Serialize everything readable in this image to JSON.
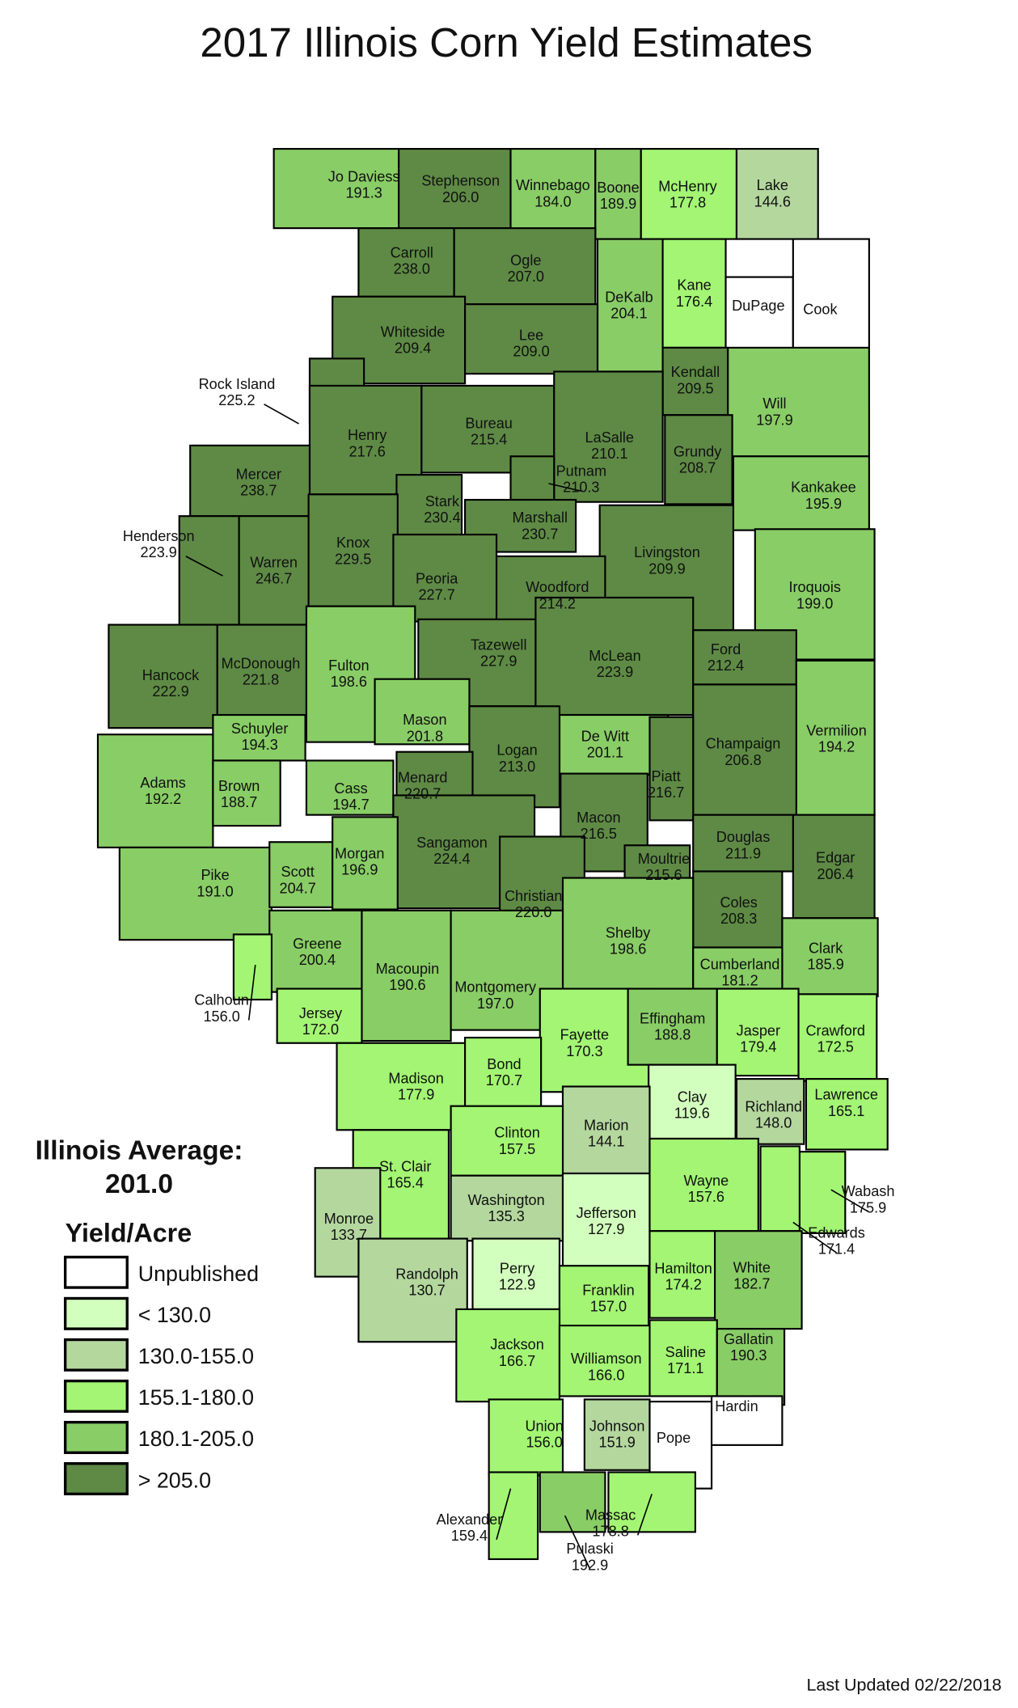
{
  "title": "2017 Illinois Corn Yield Estimates",
  "average": {
    "label": "Illinois Average:",
    "value": "201.0"
  },
  "legend": {
    "title": "Yield/Acre",
    "classes": [
      {
        "label": "Unpublished",
        "color": "#ffffff"
      },
      {
        "label": "< 130.0",
        "color": "#d3ffbe"
      },
      {
        "label": "130.0-155.0",
        "color": "#b4d79e"
      },
      {
        "label": "155.1-180.0",
        "color": "#a3f573"
      },
      {
        "label": "180.1-205.0",
        "color": "#89cd66"
      },
      {
        "label": "> 205.0",
        "color": "#5e8a45"
      }
    ]
  },
  "footer": "Last Updated 02/22/2018",
  "counties": [
    {
      "name": "Jo Daviess",
      "yield": "191.3"
    },
    {
      "name": "Stephenson",
      "yield": "206.0"
    },
    {
      "name": "Winnebago",
      "yield": "184.0"
    },
    {
      "name": "Boone",
      "yield": "189.9"
    },
    {
      "name": "McHenry",
      "yield": "177.8"
    },
    {
      "name": "Lake",
      "yield": "144.6"
    },
    {
      "name": "Carroll",
      "yield": "238.0"
    },
    {
      "name": "Ogle",
      "yield": "207.0"
    },
    {
      "name": "DeKalb",
      "yield": "204.1"
    },
    {
      "name": "Kane",
      "yield": "176.4"
    },
    {
      "name": "DuPage",
      "yield": null
    },
    {
      "name": "Cook",
      "yield": null
    },
    {
      "name": "Whiteside",
      "yield": "209.4"
    },
    {
      "name": "Lee",
      "yield": "209.0"
    },
    {
      "name": "Kendall",
      "yield": "209.5"
    },
    {
      "name": "Will",
      "yield": "197.9"
    },
    {
      "name": "Rock Island",
      "yield": "225.2"
    },
    {
      "name": "Henry",
      "yield": "217.6"
    },
    {
      "name": "Bureau",
      "yield": "215.4"
    },
    {
      "name": "LaSalle",
      "yield": "210.1"
    },
    {
      "name": "Grundy",
      "yield": "208.7"
    },
    {
      "name": "Putnam",
      "yield": "210.3"
    },
    {
      "name": "Kankakee",
      "yield": "195.9"
    },
    {
      "name": "Mercer",
      "yield": "238.7"
    },
    {
      "name": "Stark",
      "yield": "230.4"
    },
    {
      "name": "Marshall",
      "yield": "230.7"
    },
    {
      "name": "Livingston",
      "yield": "209.9"
    },
    {
      "name": "Iroquois",
      "yield": "199.0"
    },
    {
      "name": "Henderson",
      "yield": "223.9"
    },
    {
      "name": "Warren",
      "yield": "246.7"
    },
    {
      "name": "Knox",
      "yield": "229.5"
    },
    {
      "name": "Peoria",
      "yield": "227.7"
    },
    {
      "name": "Woodford",
      "yield": "214.2"
    },
    {
      "name": "Hancock",
      "yield": "222.9"
    },
    {
      "name": "McDonough",
      "yield": "221.8"
    },
    {
      "name": "Fulton",
      "yield": "198.6"
    },
    {
      "name": "Tazewell",
      "yield": "227.9"
    },
    {
      "name": "McLean",
      "yield": "223.9"
    },
    {
      "name": "Ford",
      "yield": "212.4"
    },
    {
      "name": "Vermilion",
      "yield": "194.2"
    },
    {
      "name": "Schuyler",
      "yield": "194.3"
    },
    {
      "name": "Mason",
      "yield": "201.8"
    },
    {
      "name": "Champaign",
      "yield": "206.8"
    },
    {
      "name": "De Witt",
      "yield": "201.1"
    },
    {
      "name": "Logan",
      "yield": "213.0"
    },
    {
      "name": "Piatt",
      "yield": "216.7"
    },
    {
      "name": "Adams",
      "yield": "192.2"
    },
    {
      "name": "Brown",
      "yield": "188.7"
    },
    {
      "name": "Cass",
      "yield": "194.7"
    },
    {
      "name": "Menard",
      "yield": "220.7"
    },
    {
      "name": "Sangamon",
      "yield": "224.4"
    },
    {
      "name": "Macon",
      "yield": "216.5"
    },
    {
      "name": "Moultrie",
      "yield": "215.6"
    },
    {
      "name": "Douglas",
      "yield": "211.9"
    },
    {
      "name": "Edgar",
      "yield": "206.4"
    },
    {
      "name": "Pike",
      "yield": "191.0"
    },
    {
      "name": "Scott",
      "yield": "204.7"
    },
    {
      "name": "Morgan",
      "yield": "196.9"
    },
    {
      "name": "Christian",
      "yield": "220.0"
    },
    {
      "name": "Coles",
      "yield": "208.3"
    },
    {
      "name": "Shelby",
      "yield": "198.6"
    },
    {
      "name": "Clark",
      "yield": "185.9"
    },
    {
      "name": "Greene",
      "yield": "200.4"
    },
    {
      "name": "Calhoun",
      "yield": "156.0"
    },
    {
      "name": "Macoupin",
      "yield": "190.6"
    },
    {
      "name": "Montgomery",
      "yield": "197.0"
    },
    {
      "name": "Cumberland",
      "yield": "181.2"
    },
    {
      "name": "Jersey",
      "yield": "172.0"
    },
    {
      "name": "Fayette",
      "yield": "170.3"
    },
    {
      "name": "Effingham",
      "yield": "188.8"
    },
    {
      "name": "Jasper",
      "yield": "179.4"
    },
    {
      "name": "Crawford",
      "yield": "172.5"
    },
    {
      "name": "Madison",
      "yield": "177.9"
    },
    {
      "name": "Bond",
      "yield": "170.7"
    },
    {
      "name": "Clay",
      "yield": "119.6"
    },
    {
      "name": "Richland",
      "yield": "148.0"
    },
    {
      "name": "Lawrence",
      "yield": "165.1"
    },
    {
      "name": "Marion",
      "yield": "144.1"
    },
    {
      "name": "Clinton",
      "yield": "157.5"
    },
    {
      "name": "St. Clair",
      "yield": "165.4"
    },
    {
      "name": "Monroe",
      "yield": "133.7"
    },
    {
      "name": "Washington",
      "yield": "135.3"
    },
    {
      "name": "Jefferson",
      "yield": "127.9"
    },
    {
      "name": "Wayne",
      "yield": "157.6"
    },
    {
      "name": "Wabash",
      "yield": "175.9"
    },
    {
      "name": "Edwards",
      "yield": "171.4"
    },
    {
      "name": "Randolph",
      "yield": "130.7"
    },
    {
      "name": "Perry",
      "yield": "122.9"
    },
    {
      "name": "Franklin",
      "yield": "157.0"
    },
    {
      "name": "Hamilton",
      "yield": "174.2"
    },
    {
      "name": "White",
      "yield": "182.7"
    },
    {
      "name": "Jackson",
      "yield": "166.7"
    },
    {
      "name": "Williamson",
      "yield": "166.0"
    },
    {
      "name": "Saline",
      "yield": "171.1"
    },
    {
      "name": "Gallatin",
      "yield": "190.3"
    },
    {
      "name": "Union",
      "yield": "156.0"
    },
    {
      "name": "Johnson",
      "yield": "151.9"
    },
    {
      "name": "Pope",
      "yield": null
    },
    {
      "name": "Hardin",
      "yield": null
    },
    {
      "name": "Alexander",
      "yield": "159.4"
    },
    {
      "name": "Pulaski",
      "yield": "192.9"
    },
    {
      "name": "Massac",
      "yield": "178.8"
    }
  ]
}
